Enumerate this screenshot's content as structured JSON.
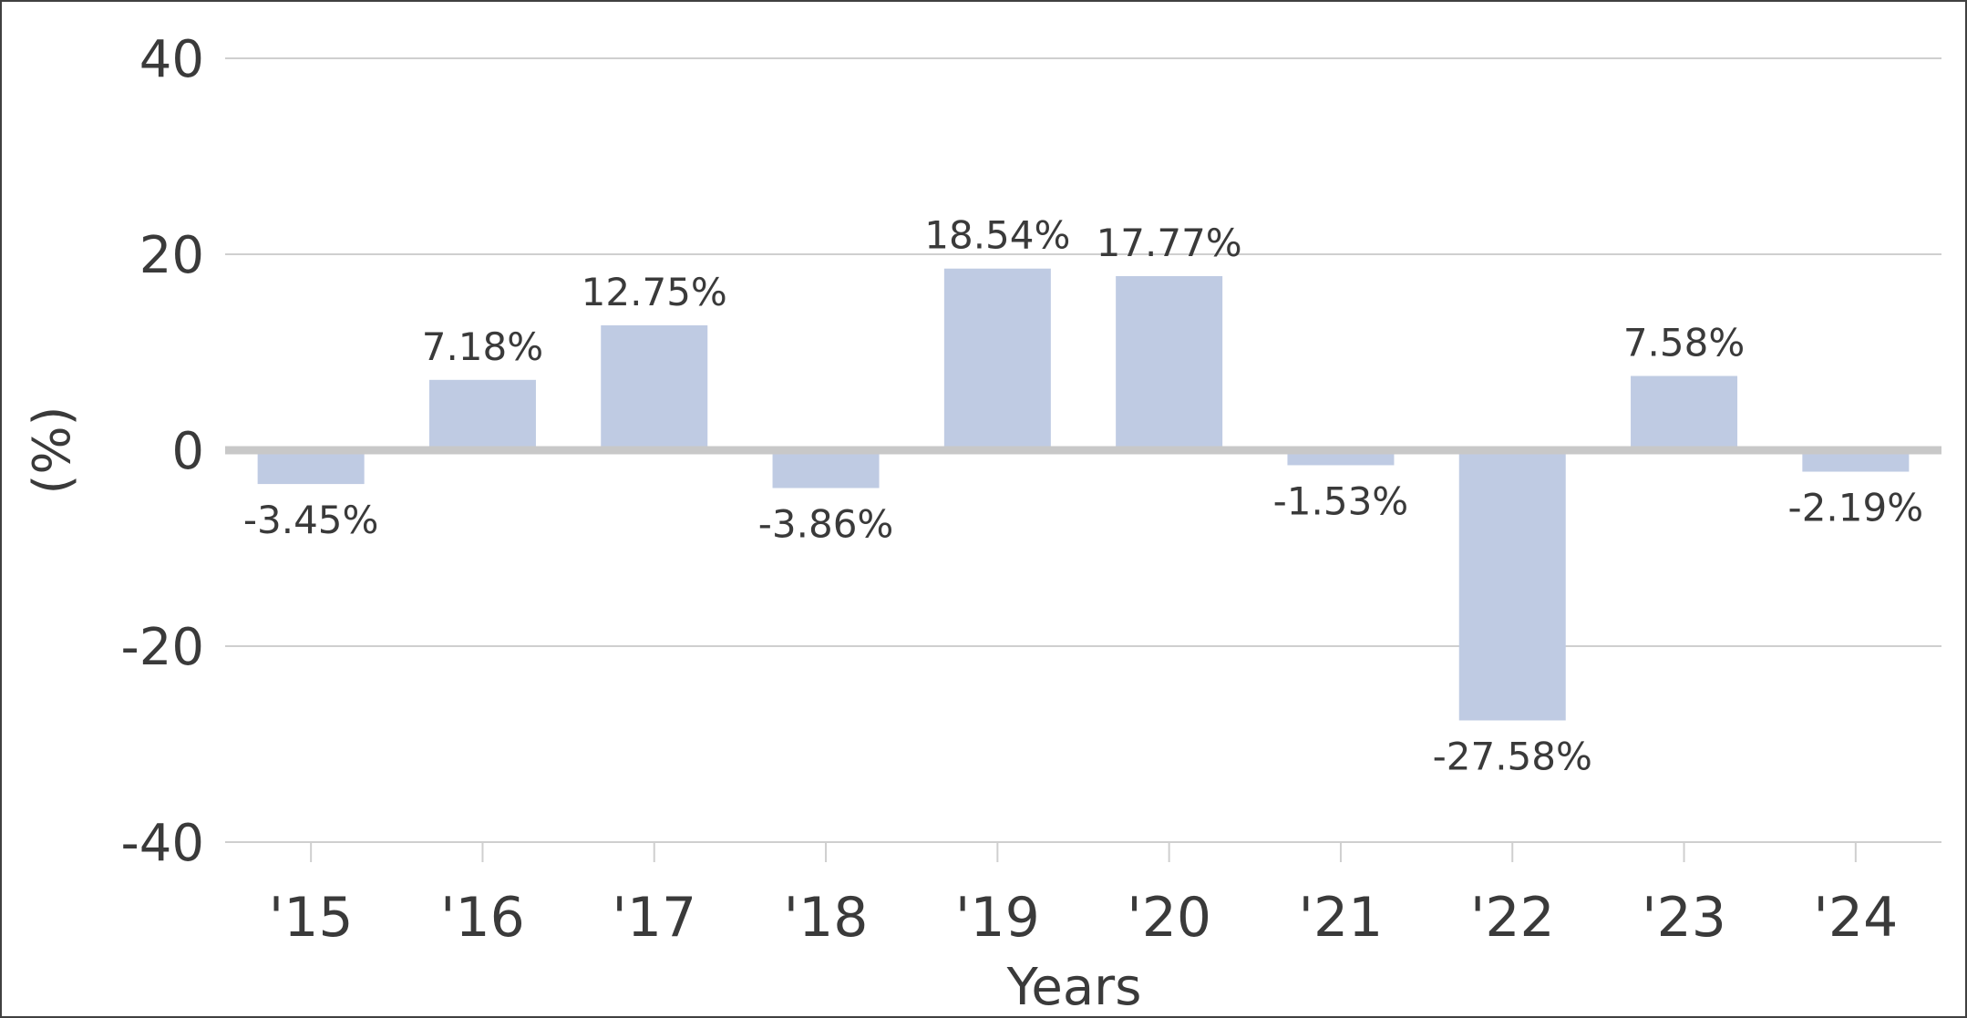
{
  "chart_data": {
    "type": "bar",
    "categories": [
      "'15",
      "'16",
      "'17",
      "'18",
      "'19",
      "'20",
      "'21",
      "'22",
      "'23",
      "'24"
    ],
    "series": [
      {
        "values": [
          -3.45,
          7.18,
          12.75,
          -3.86,
          18.54,
          17.77,
          -1.53,
          -27.58,
          7.58,
          -2.19
        ]
      }
    ],
    "data_labels": [
      "-3.45%",
      "7.18%",
      "12.75%",
      "-3.86%",
      "18.54%",
      "17.77%",
      "-1.53%",
      "-27.58%",
      "7.58%",
      "-2.19%"
    ],
    "title": "",
    "xlabel": "Years",
    "ylabel": "(%)",
    "ylim": [
      -40,
      40
    ],
    "yticks": [
      40,
      20,
      0,
      -20,
      -40
    ],
    "ytick_labels": [
      "40",
      "20",
      "0",
      "-20",
      "-40"
    ],
    "grid": true,
    "legend": "none",
    "colors": {
      "bar": "#bfcbe3",
      "gridline": "#cfcfcf",
      "zero_line": "#c8c8c8",
      "text": "#3a3a3a"
    }
  }
}
